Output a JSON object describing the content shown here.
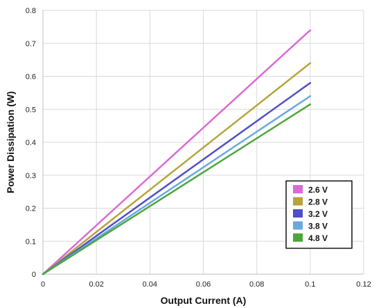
{
  "chart_data": {
    "type": "line",
    "title": "",
    "xlabel": "Output Current (A)",
    "ylabel": "Power Dissipation  (W)",
    "xlim": [
      0,
      0.12
    ],
    "ylim": [
      0,
      0.8
    ],
    "x_ticks": [
      "0",
      "0.02",
      "0.04",
      "0.06",
      "0.08",
      "0.1",
      "0.12"
    ],
    "y_ticks": [
      "0",
      "0.1",
      "0.2",
      "0.3",
      "0.4",
      "0.5",
      "0.6",
      "0.7",
      "0.8"
    ],
    "grid": true,
    "legend_position": "lower-right",
    "series": [
      {
        "name": "2.6 V",
        "color": "#d96ad6",
        "x": [
          0,
          0.1
        ],
        "y": [
          0,
          0.74
        ]
      },
      {
        "name": "2.8 V",
        "color": "#b8a23a",
        "x": [
          0,
          0.1
        ],
        "y": [
          0,
          0.64
        ]
      },
      {
        "name": "3.2 V",
        "color": "#4f4fc8",
        "x": [
          0,
          0.1
        ],
        "y": [
          0,
          0.58
        ]
      },
      {
        "name": "3.8 V",
        "color": "#6aa9e0",
        "x": [
          0,
          0.1
        ],
        "y": [
          0,
          0.54
        ]
      },
      {
        "name": "4.8 V",
        "color": "#4aa63a",
        "x": [
          0,
          0.1
        ],
        "y": [
          0,
          0.515
        ]
      }
    ]
  }
}
